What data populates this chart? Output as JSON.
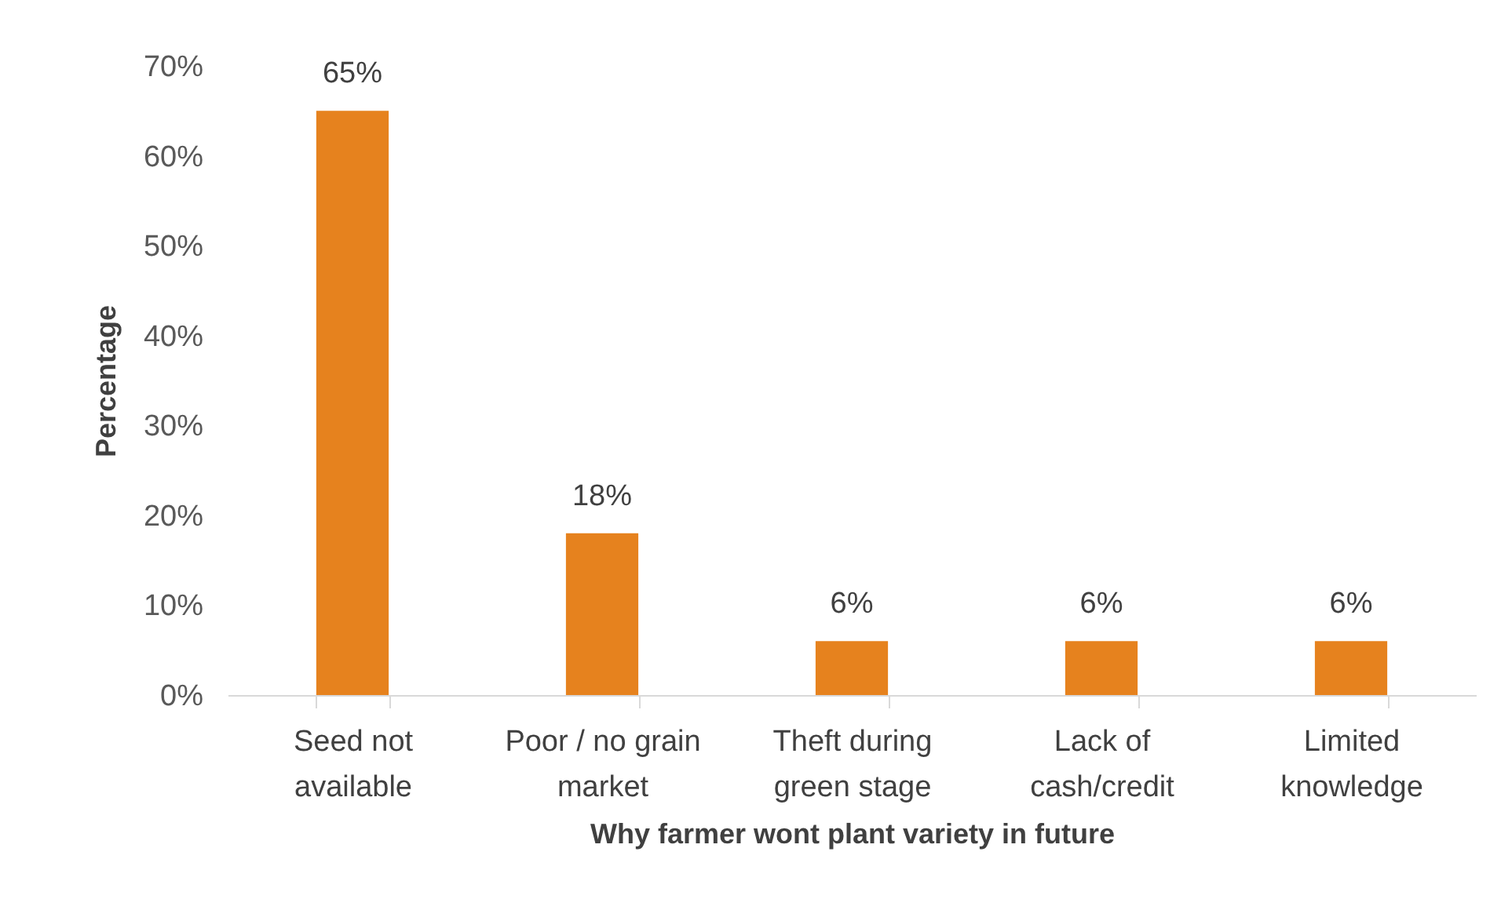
{
  "chart_data": {
    "type": "bar",
    "xlabel": "Why farmer wont plant variety in future",
    "ylabel": "Percentage",
    "categories": [
      "Seed not available",
      "Poor / no grain market",
      "Theft during green stage",
      "Lack of cash/credit",
      "Limited knowledge"
    ],
    "values": [
      65,
      18,
      6,
      6,
      6
    ],
    "color": "#e6821e",
    "value_labels": [
      "65%",
      "18%",
      "6%",
      "6%",
      "6%"
    ],
    "ylim": [
      0,
      70
    ],
    "yticks": [
      {
        "value": 0,
        "label": "0%"
      },
      {
        "value": 10,
        "label": "10%"
      },
      {
        "value": 20,
        "label": "20%"
      },
      {
        "value": 30,
        "label": "30%"
      },
      {
        "value": 40,
        "label": "40%"
      },
      {
        "value": 50,
        "label": "50%"
      },
      {
        "value": 60,
        "label": "60%"
      },
      {
        "value": 70,
        "label": "70%"
      }
    ],
    "grid": false
  }
}
